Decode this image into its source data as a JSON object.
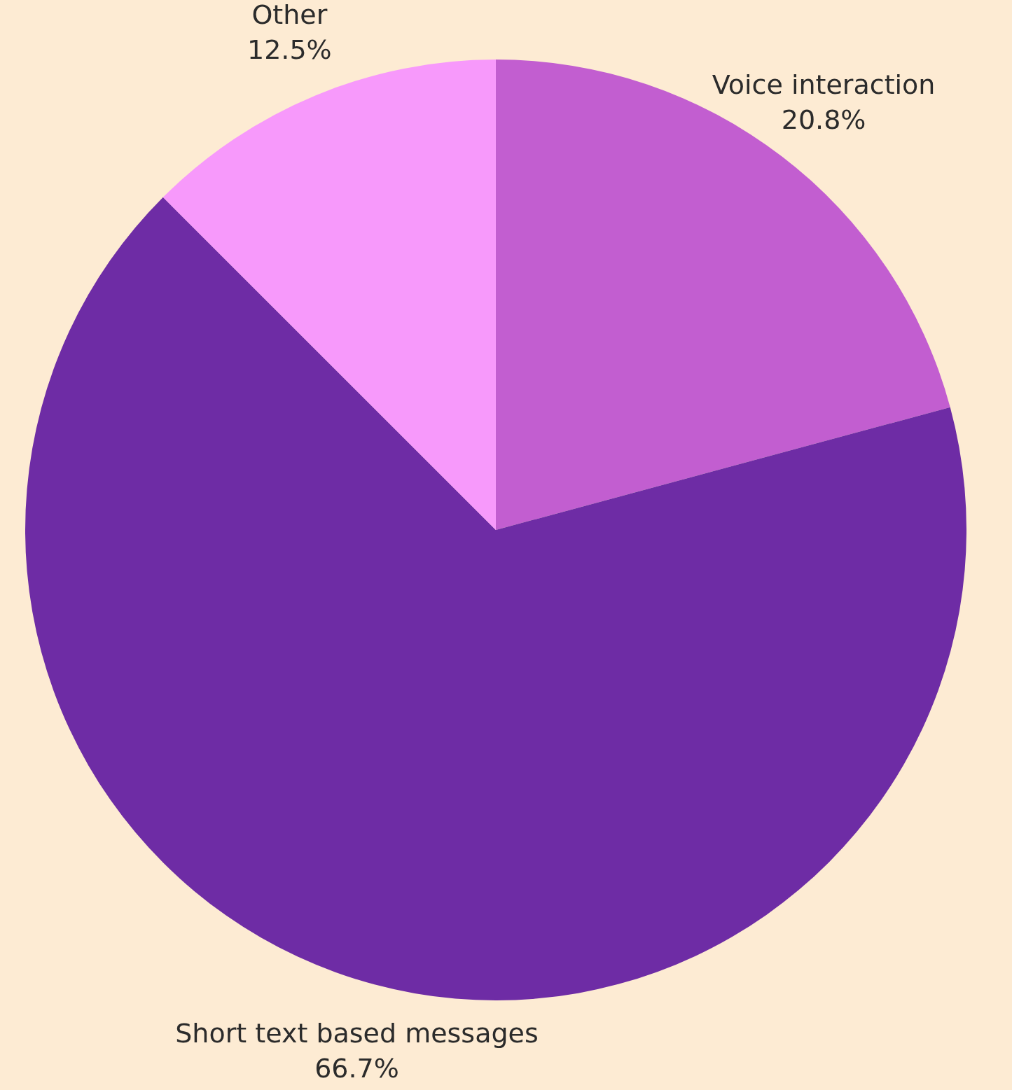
{
  "chart_data": {
    "type": "pie",
    "categories": [
      "Voice interaction",
      "Short text based messages",
      "Other"
    ],
    "values": [
      20.8,
      66.7,
      12.5
    ],
    "value_labels": [
      "20.8%",
      "66.7%",
      "12.5%"
    ],
    "colors": [
      "#c25ed0",
      "#6e2ca5",
      "#f799fb"
    ]
  }
}
